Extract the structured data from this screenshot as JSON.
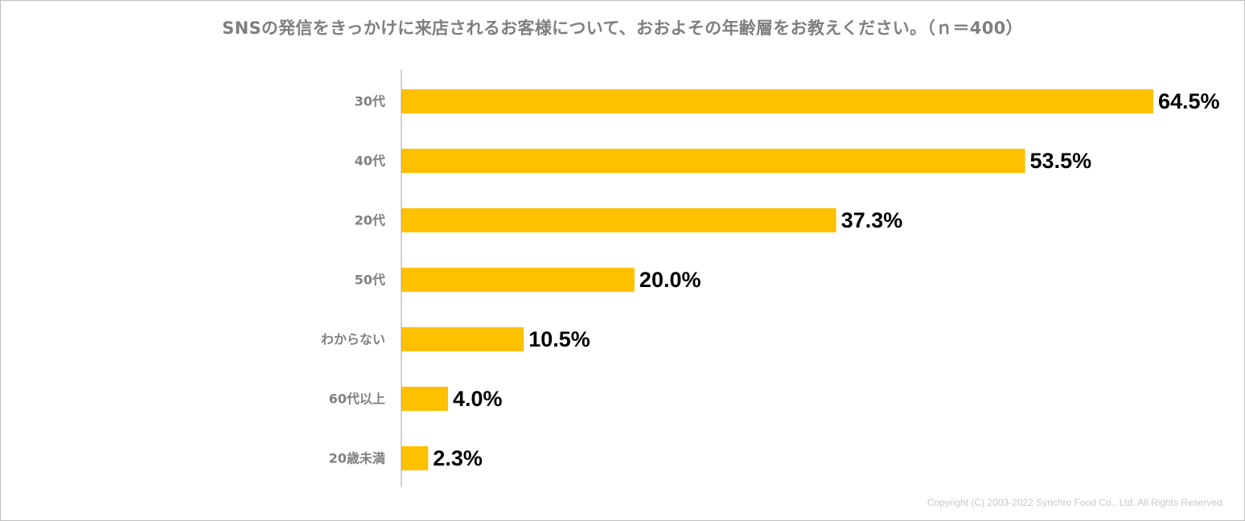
{
  "chart_data": {
    "type": "bar",
    "orientation": "horizontal",
    "title": "SNSの発信をきっかけに来店されるお客様について、おおよその年齢層をお教えください。（ｎ＝400）",
    "categories": [
      "30代",
      "40代",
      "20代",
      "50代",
      "わからない",
      "60代以上",
      "20歳未満"
    ],
    "values": [
      64.5,
      53.5,
      37.3,
      20.0,
      10.5,
      4.0,
      2.3
    ],
    "value_labels": [
      "64.5%",
      "53.5%",
      "37.3%",
      "20.0%",
      "10.5%",
      "4.0%",
      "2.3%"
    ],
    "xlim": [
      0,
      100
    ],
    "grid": false,
    "bar_color": "#FFC000",
    "label_color": "#808080",
    "value_color": "#000000"
  },
  "copyright": "Copyright (C) 2003-2022   Synchro Food Co., Ltd. All Rights Reserved."
}
